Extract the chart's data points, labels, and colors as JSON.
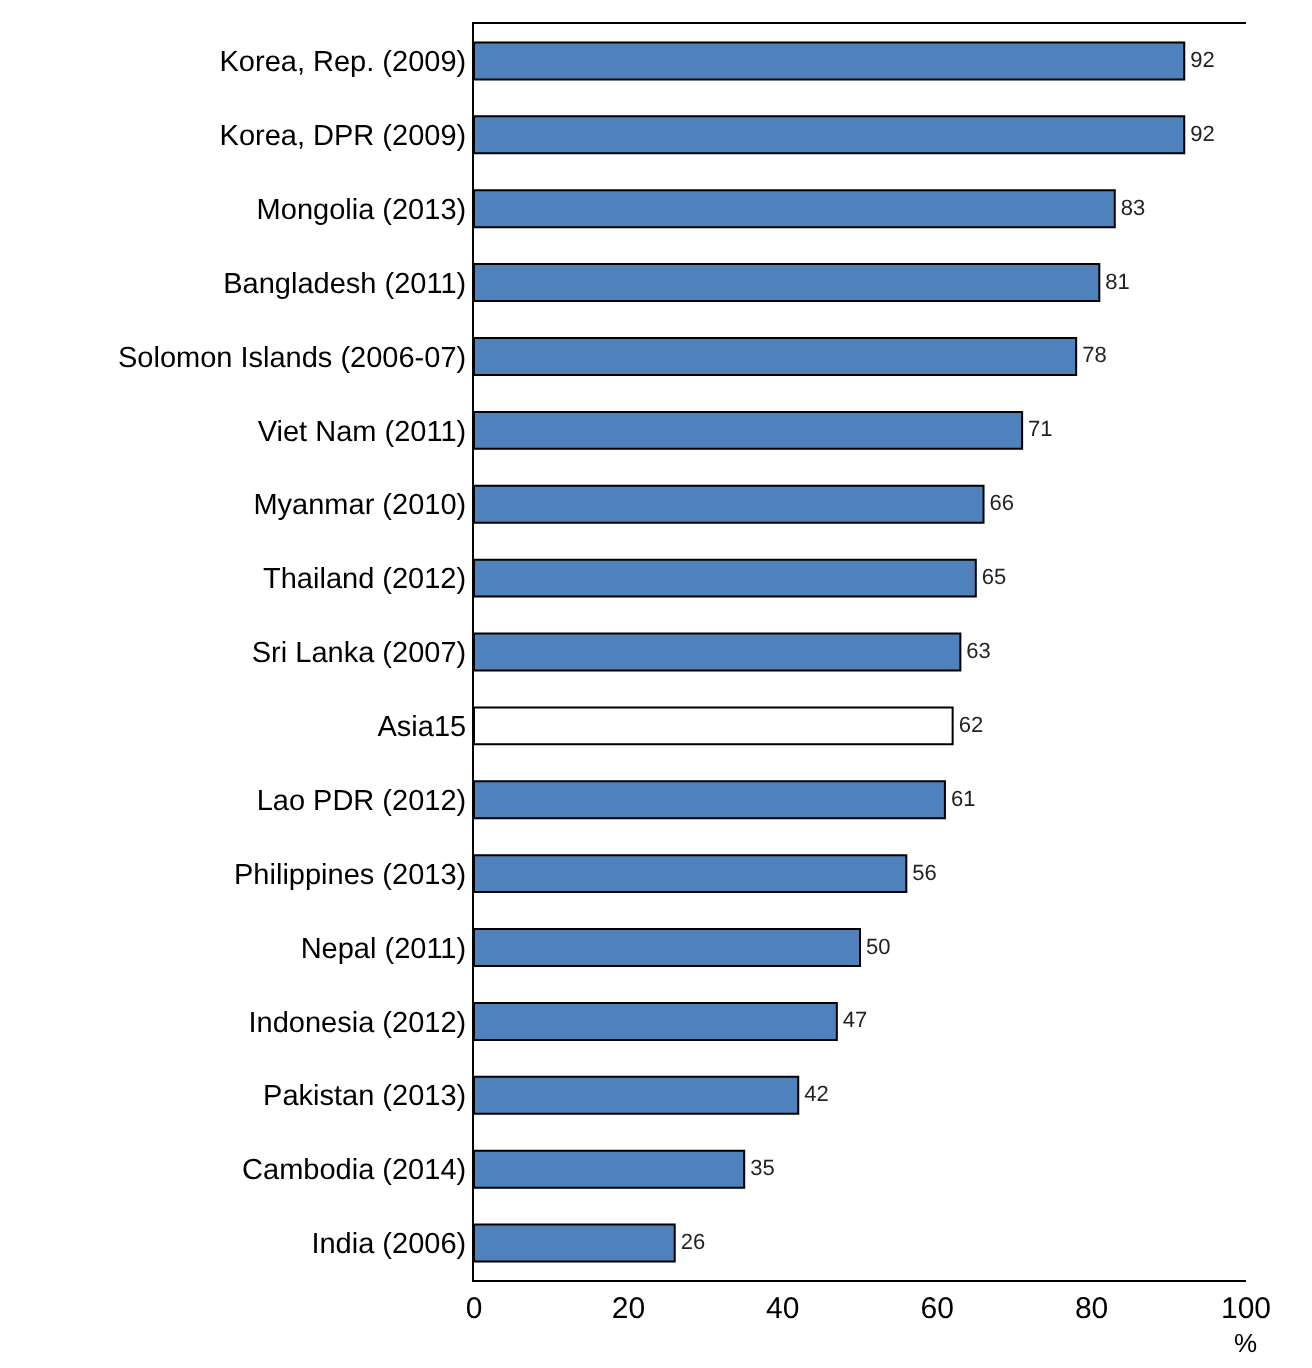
{
  "chart_data": {
    "type": "bar",
    "orientation": "horizontal",
    "categories": [
      "Korea, Rep. (2009)",
      "Korea, DPR (2009)",
      "Mongolia (2013)",
      "Bangladesh (2011)",
      "Solomon Islands (2006-07)",
      "Viet Nam (2011)",
      "Myanmar (2010)",
      "Thailand (2012)",
      "Sri Lanka (2007)",
      "Asia15",
      "Lao PDR (2012)",
      "Philippines (2013)",
      "Nepal (2011)",
      "Indonesia (2012)",
      "Pakistan (2013)",
      "Cambodia (2014)",
      "India (2006)"
    ],
    "values": [
      92,
      92,
      83,
      81,
      78,
      71,
      66,
      65,
      63,
      62,
      61,
      56,
      50,
      47,
      42,
      35,
      26
    ],
    "colors": [
      "#4f81bd",
      "#4f81bd",
      "#4f81bd",
      "#4f81bd",
      "#4f81bd",
      "#4f81bd",
      "#4f81bd",
      "#4f81bd",
      "#4f81bd",
      "#ffffff",
      "#4f81bd",
      "#4f81bd",
      "#4f81bd",
      "#4f81bd",
      "#4f81bd",
      "#4f81bd",
      "#4f81bd"
    ],
    "data_labels": true,
    "xlim": [
      0,
      100
    ],
    "xticks": [
      0,
      20,
      40,
      60,
      80,
      100
    ],
    "xlabel": "%",
    "grid": false,
    "legend": false
  }
}
